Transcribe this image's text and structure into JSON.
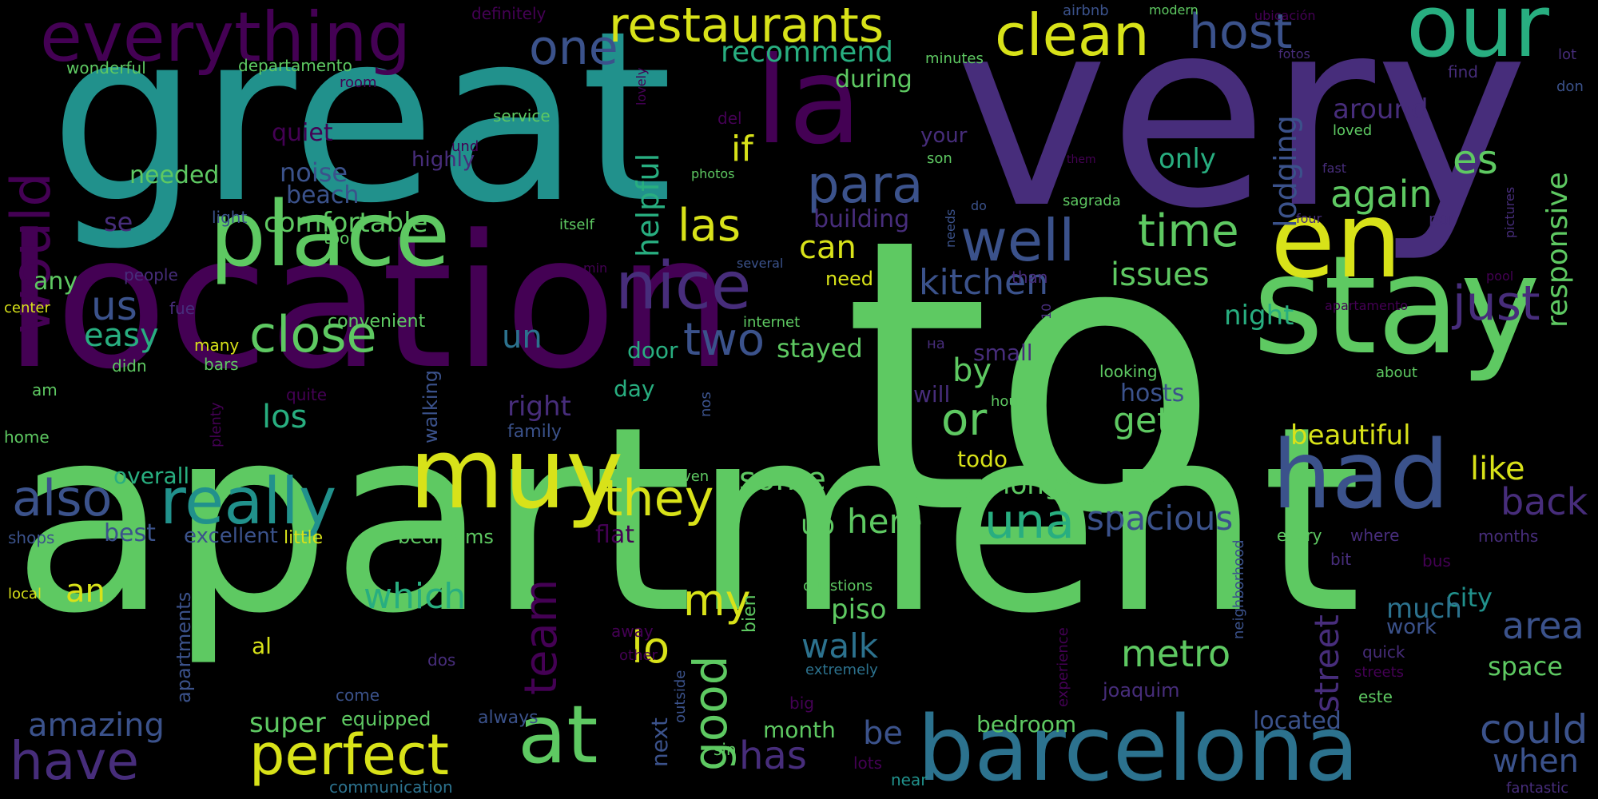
{
  "palette": {
    "dark_purple": "#440154",
    "purple": "#472d7b",
    "indigo": "#3b528b",
    "blue": "#2c728e",
    "teal": "#21918c",
    "teal_green": "#28ae80",
    "green": "#5ec962",
    "light_green": "#addc30",
    "yellow": "#d8e219"
  },
  "words": [
    {
      "text": "to",
      "color": "#5ec962"
    },
    {
      "text": "apartment",
      "color": "#5ec962"
    },
    {
      "text": "great",
      "color": "#21918c"
    },
    {
      "text": "very",
      "color": "#472d7b"
    },
    {
      "text": "location",
      "color": "#440154"
    },
    {
      "text": "stay",
      "color": "#5ec962"
    },
    {
      "text": "place",
      "color": "#5ec962"
    },
    {
      "text": "barcelona",
      "color": "#2c728e"
    },
    {
      "text": "la",
      "color": "#440154"
    },
    {
      "text": "en",
      "color": "#d8e219"
    },
    {
      "text": "muy",
      "color": "#d8e219"
    },
    {
      "text": "had",
      "color": "#3b528b"
    },
    {
      "text": "our",
      "color": "#28ae80"
    },
    {
      "text": "at",
      "color": "#5ec962"
    },
    {
      "text": "everything",
      "color": "#440154"
    },
    {
      "text": "really",
      "color": "#21918c"
    },
    {
      "text": "nice",
      "color": "#472d7b"
    },
    {
      "text": "clean",
      "color": "#d8e219"
    },
    {
      "text": "restaurants",
      "color": "#d8e219"
    },
    {
      "text": "would",
      "color": "#440154"
    },
    {
      "text": "well",
      "color": "#3b528b"
    },
    {
      "text": "para",
      "color": "#3b528b"
    },
    {
      "text": "perfect",
      "color": "#d8e219"
    },
    {
      "text": "have",
      "color": "#472d7b"
    },
    {
      "text": "also",
      "color": "#3b528b"
    },
    {
      "text": "close",
      "color": "#5ec962"
    },
    {
      "text": "one",
      "color": "#3b528b"
    },
    {
      "text": "host",
      "color": "#3b528b"
    },
    {
      "text": "they",
      "color": "#d8e219"
    },
    {
      "text": "good",
      "color": "#5ec962"
    },
    {
      "text": "una",
      "color": "#28ae80"
    },
    {
      "text": "just",
      "color": "#472d7b"
    },
    {
      "text": "time",
      "color": "#5ec962"
    },
    {
      "text": "las",
      "color": "#d8e219"
    },
    {
      "text": "team",
      "color": "#440154"
    },
    {
      "text": "two",
      "color": "#3b528b"
    },
    {
      "text": "or",
      "color": "#5ec962"
    },
    {
      "text": "could",
      "color": "#3b528b"
    },
    {
      "text": "es",
      "color": "#5ec962"
    },
    {
      "text": "us",
      "color": "#3b528b"
    },
    {
      "text": "my",
      "color": "#d8e219"
    },
    {
      "text": "lo",
      "color": "#d8e219"
    },
    {
      "text": "street",
      "color": "#472d7b"
    },
    {
      "text": "area",
      "color": "#3b528b"
    },
    {
      "text": "kitchen",
      "color": "#3b528b"
    },
    {
      "text": "lodging",
      "color": "#3b528b"
    },
    {
      "text": "again",
      "color": "#5ec962"
    },
    {
      "text": "responsive",
      "color": "#5ec962"
    },
    {
      "text": "spacious",
      "color": "#3b528b"
    },
    {
      "text": "back",
      "color": "#472d7b"
    },
    {
      "text": "recommend",
      "color": "#28ae80"
    },
    {
      "text": "here",
      "color": "#5ec962"
    },
    {
      "text": "which",
      "color": "#28ae80"
    },
    {
      "text": "amazing",
      "color": "#3b528b"
    },
    {
      "text": "helpful",
      "color": "#28ae80"
    },
    {
      "text": "has",
      "color": "#472d7b"
    },
    {
      "text": "metro",
      "color": "#5ec962"
    },
    {
      "text": "walk",
      "color": "#2c728e"
    },
    {
      "text": "get",
      "color": "#5ec962"
    },
    {
      "text": "if",
      "color": "#d8e219"
    },
    {
      "text": "can",
      "color": "#d8e219"
    },
    {
      "text": "easy",
      "color": "#28ae80"
    },
    {
      "text": "issues",
      "color": "#5ec962"
    },
    {
      "text": "by",
      "color": "#5ec962"
    },
    {
      "text": "some",
      "color": "#5ec962"
    },
    {
      "text": "un",
      "color": "#2c728e"
    },
    {
      "text": "los",
      "color": "#28ae80"
    },
    {
      "text": "like",
      "color": "#d8e219"
    },
    {
      "text": "beautiful",
      "color": "#d8e219"
    },
    {
      "text": "night",
      "color": "#28ae80"
    },
    {
      "text": "only",
      "color": "#28ae80"
    },
    {
      "text": "be",
      "color": "#3b528b"
    },
    {
      "text": "when",
      "color": "#3b528b"
    },
    {
      "text": "an",
      "color": "#d8e219"
    },
    {
      "text": "city",
      "color": "#21918c"
    },
    {
      "text": "space",
      "color": "#5ec962"
    },
    {
      "text": "comfortable",
      "color": "#5ec962"
    },
    {
      "text": "stayed",
      "color": "#5ec962"
    },
    {
      "text": "right",
      "color": "#472d7b"
    },
    {
      "text": "long",
      "color": "#5ec962"
    },
    {
      "text": "much",
      "color": "#2c728e"
    },
    {
      "text": "super",
      "color": "#5ec962"
    },
    {
      "text": "piso",
      "color": "#5ec962"
    },
    {
      "text": "up",
      "color": "#5ec962"
    },
    {
      "text": "around",
      "color": "#472d7b"
    },
    {
      "text": "during",
      "color": "#5ec962"
    },
    {
      "text": "noise",
      "color": "#3b528b"
    },
    {
      "text": "quiet",
      "color": "#440154"
    },
    {
      "text": "building",
      "color": "#472d7b"
    },
    {
      "text": "beach",
      "color": "#3b528b"
    },
    {
      "text": "needed",
      "color": "#5ec962"
    },
    {
      "text": "any",
      "color": "#5ec962"
    },
    {
      "text": "se",
      "color": "#472d7b"
    },
    {
      "text": "best",
      "color": "#3b528b"
    },
    {
      "text": "excellent",
      "color": "#3b528b"
    },
    {
      "text": "flat",
      "color": "#440154"
    },
    {
      "text": "bedrooms",
      "color": "#5ec962"
    },
    {
      "text": "month",
      "color": "#5ec962"
    },
    {
      "text": "next",
      "color": "#3b528b"
    },
    {
      "text": "bedroom",
      "color": "#5ec962"
    },
    {
      "text": "located",
      "color": "#3b528b"
    },
    {
      "text": "small",
      "color": "#472d7b"
    },
    {
      "text": "door",
      "color": "#28ae80"
    },
    {
      "text": "day",
      "color": "#28ae80"
    },
    {
      "text": "overall",
      "color": "#28ae80"
    },
    {
      "text": "todo",
      "color": "#d8e219"
    },
    {
      "text": "will",
      "color": "#472d7b"
    },
    {
      "text": "hosts",
      "color": "#3b528b"
    },
    {
      "text": "walking",
      "color": "#3b528b"
    },
    {
      "text": "work",
      "color": "#3b528b"
    },
    {
      "text": "apartments",
      "color": "#3b528b"
    },
    {
      "text": "highly",
      "color": "#472d7b"
    },
    {
      "text": "your",
      "color": "#472d7b"
    },
    {
      "text": "need",
      "color": "#d8e219"
    },
    {
      "text": "people",
      "color": "#472d7b"
    },
    {
      "text": "al",
      "color": "#d8e219"
    },
    {
      "text": "family",
      "color": "#3b528b"
    },
    {
      "text": "convenient",
      "color": "#5ec962"
    },
    {
      "text": "equipped",
      "color": "#5ec962"
    },
    {
      "text": "little",
      "color": "#d8e219"
    },
    {
      "text": "shops",
      "color": "#3b528b"
    },
    {
      "text": "fantastic",
      "color": "#472d7b"
    },
    {
      "text": "communication",
      "color": "#2c728e"
    },
    {
      "text": "joaquim",
      "color": "#472d7b"
    },
    {
      "text": "lots",
      "color": "#440154"
    },
    {
      "text": "near",
      "color": "#21918c"
    },
    {
      "text": "sin",
      "color": "#5ec962"
    },
    {
      "text": "always",
      "color": "#3b528b"
    },
    {
      "text": "come",
      "color": "#3b528b"
    },
    {
      "text": "big",
      "color": "#440154"
    },
    {
      "text": "este",
      "color": "#5ec962"
    },
    {
      "text": "streets",
      "color": "#440154"
    },
    {
      "text": "quick",
      "color": "#472d7b"
    },
    {
      "text": "months",
      "color": "#472d7b"
    },
    {
      "text": "extremely",
      "color": "#2c728e"
    },
    {
      "text": "bus",
      "color": "#440154"
    },
    {
      "text": "every",
      "color": "#5ec962"
    },
    {
      "text": "where",
      "color": "#472d7b"
    },
    {
      "text": "bit",
      "color": "#472d7b"
    },
    {
      "text": "bien",
      "color": "#5ec962"
    },
    {
      "text": "dos",
      "color": "#472d7b"
    },
    {
      "text": "away",
      "color": "#440154"
    },
    {
      "text": "other",
      "color": "#440154"
    },
    {
      "text": "outside",
      "color": "#3b528b"
    },
    {
      "text": "neighborhood",
      "color": "#3b528b"
    },
    {
      "text": "experience",
      "color": "#440154"
    },
    {
      "text": "questions",
      "color": "#5ec962"
    },
    {
      "text": "local",
      "color": "#d8e219"
    },
    {
      "text": "home",
      "color": "#5ec962"
    },
    {
      "text": "plenty",
      "color": "#440154"
    },
    {
      "text": "quite",
      "color": "#440154"
    },
    {
      "text": "am",
      "color": "#5ec962"
    },
    {
      "text": "didn",
      "color": "#5ec962"
    },
    {
      "text": "many",
      "color": "#d8e219"
    },
    {
      "text": "bars",
      "color": "#5ec962"
    },
    {
      "text": "fue",
      "color": "#472d7b"
    },
    {
      "text": "center",
      "color": "#d8e219"
    },
    {
      "text": "too",
      "color": "#5ec962"
    },
    {
      "text": "light",
      "color": "#3b528b"
    },
    {
      "text": "room",
      "color": "#440154"
    },
    {
      "text": "departamento",
      "color": "#5ec962"
    },
    {
      "text": "wonderful",
      "color": "#5ec962"
    },
    {
      "text": "definitely",
      "color": "#440154"
    },
    {
      "text": "service",
      "color": "#5ec962"
    },
    {
      "text": "und",
      "color": "#440154"
    },
    {
      "text": "del",
      "color": "#440154"
    },
    {
      "text": "lovely",
      "color": "#440154"
    },
    {
      "text": "photos",
      "color": "#5ec962"
    },
    {
      "text": "itself",
      "color": "#5ec962"
    },
    {
      "text": "several",
      "color": "#3b528b"
    },
    {
      "text": "min",
      "color": "#440154"
    },
    {
      "text": "internet",
      "color": "#5ec962"
    },
    {
      "text": "на",
      "color": "#472d7b"
    },
    {
      "text": "looking",
      "color": "#5ec962"
    },
    {
      "text": "hours",
      "color": "#5ec962"
    },
    {
      "text": "nos",
      "color": "#3b528b"
    },
    {
      "text": "even",
      "color": "#5ec962"
    },
    {
      "text": "than",
      "color": "#472d7b"
    },
    {
      "text": "10",
      "color": "#472d7b"
    },
    {
      "text": "needs",
      "color": "#3b528b"
    },
    {
      "text": "do",
      "color": "#3b528b"
    },
    {
      "text": "son",
      "color": "#5ec962"
    },
    {
      "text": "minutes",
      "color": "#5ec962"
    },
    {
      "text": "airbnb",
      "color": "#3b528b"
    },
    {
      "text": "modern",
      "color": "#5ec962"
    },
    {
      "text": "ubicación",
      "color": "#440154"
    },
    {
      "text": "fotos",
      "color": "#472d7b"
    },
    {
      "text": "them",
      "color": "#440154"
    },
    {
      "text": "fast",
      "color": "#472d7b"
    },
    {
      "text": "loved",
      "color": "#5ec962"
    },
    {
      "text": "sagrada",
      "color": "#5ec962"
    },
    {
      "text": "four",
      "color": "#472d7b"
    },
    {
      "text": "por",
      "color": "#472d7b"
    },
    {
      "text": "pictures",
      "color": "#472d7b"
    },
    {
      "text": "find",
      "color": "#472d7b"
    },
    {
      "text": "lot",
      "color": "#472d7b"
    },
    {
      "text": "don",
      "color": "#3b528b"
    },
    {
      "text": "pool",
      "color": "#440154"
    },
    {
      "text": "apartamento",
      "color": "#440154"
    },
    {
      "text": "about",
      "color": "#5ec962"
    }
  ]
}
